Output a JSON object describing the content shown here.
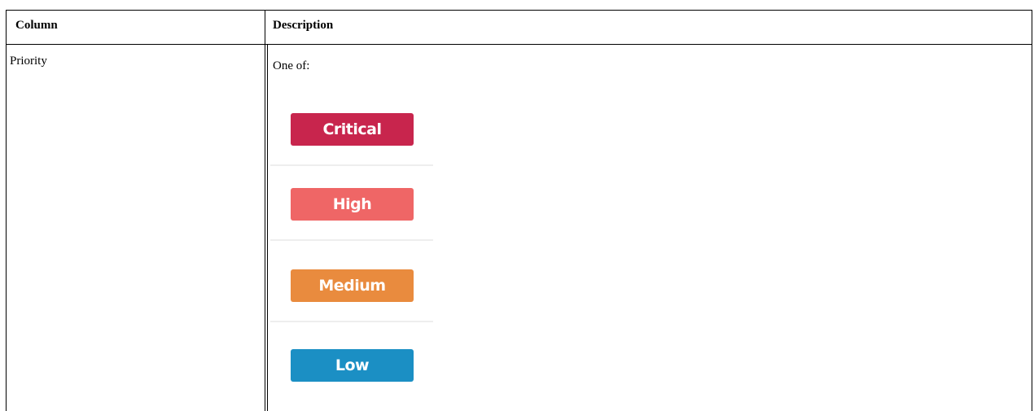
{
  "table": {
    "header": [
      "Column",
      "Description"
    ],
    "rows": [
      [
        "Priority",
        "One of:"
      ]
    ],
    "badges": [
      {
        "label": "Critical",
        "color": "#c8254d"
      },
      {
        "label": "High",
        "color": "#ef6666"
      },
      {
        "label": "Medium",
        "color": "#e98b3e"
      },
      {
        "label": "Low",
        "color": "#1b8fc4"
      }
    ]
  }
}
